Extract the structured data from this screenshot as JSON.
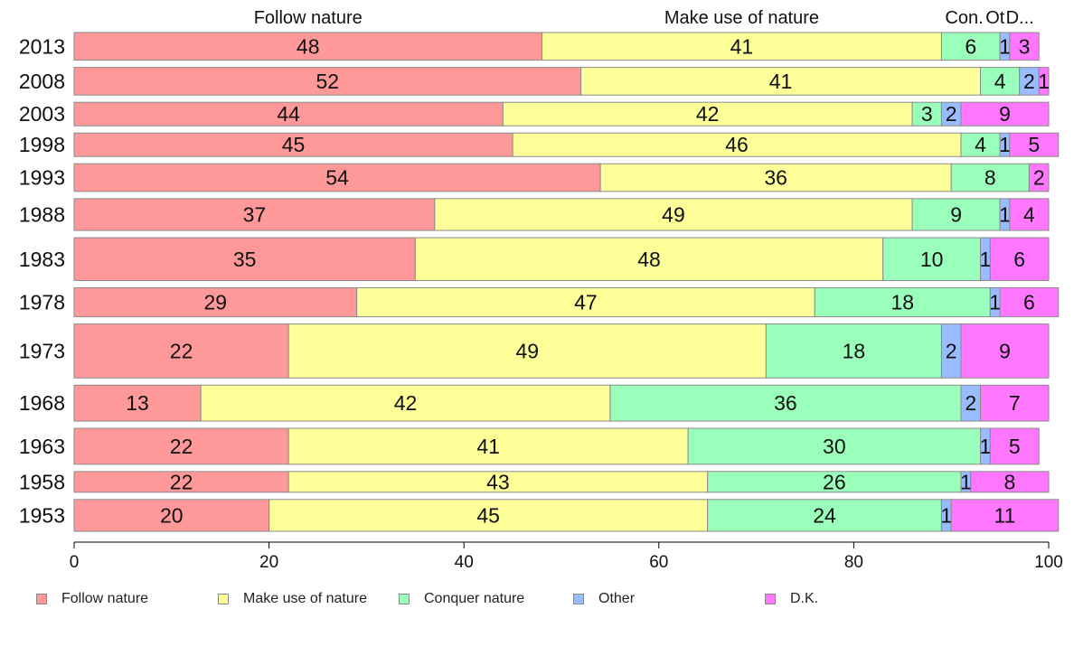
{
  "chart_data": {
    "type": "bar",
    "orientation": "horizontal",
    "stacked": true,
    "categories": [
      "2013",
      "2008",
      "2003",
      "1998",
      "1993",
      "1988",
      "1983",
      "1978",
      "1973",
      "1968",
      "1963",
      "1958",
      "1953"
    ],
    "bar_weights": [
      1,
      1,
      0.85,
      0.85,
      1,
      1.15,
      1.55,
      1.05,
      1.95,
      1.3,
      1.3,
      0.75,
      1.15
    ],
    "series": [
      {
        "name": "Follow nature",
        "color": "#ff9999",
        "values": [
          48,
          52,
          44,
          45,
          54,
          37,
          35,
          29,
          22,
          13,
          22,
          22,
          20
        ]
      },
      {
        "name": "Make use of nature",
        "color": "#ffff99",
        "values": [
          41,
          41,
          42,
          46,
          36,
          49,
          48,
          47,
          49,
          42,
          41,
          43,
          45
        ]
      },
      {
        "name": "Conquer nature",
        "color": "#99ffbb",
        "values": [
          6,
          4,
          3,
          4,
          8,
          9,
          10,
          18,
          18,
          36,
          30,
          26,
          24
        ]
      },
      {
        "name": "Other",
        "color": "#99bbff",
        "values": [
          1,
          2,
          2,
          1,
          0,
          1,
          1,
          1,
          2,
          2,
          1,
          1,
          1
        ]
      },
      {
        "name": "D.K.",
        "color": "#ff77ff",
        "values": [
          3,
          1,
          9,
          5,
          2,
          4,
          6,
          6,
          9,
          7,
          5,
          8,
          11
        ]
      }
    ],
    "top_labels": [
      "Follow nature",
      "Make use of nature",
      "Con.",
      "Ot",
      "D..."
    ],
    "xlim": [
      0,
      100
    ],
    "xticks": [
      0,
      20,
      40,
      60,
      80,
      100
    ],
    "grid": false,
    "legend_position": "bottom"
  }
}
